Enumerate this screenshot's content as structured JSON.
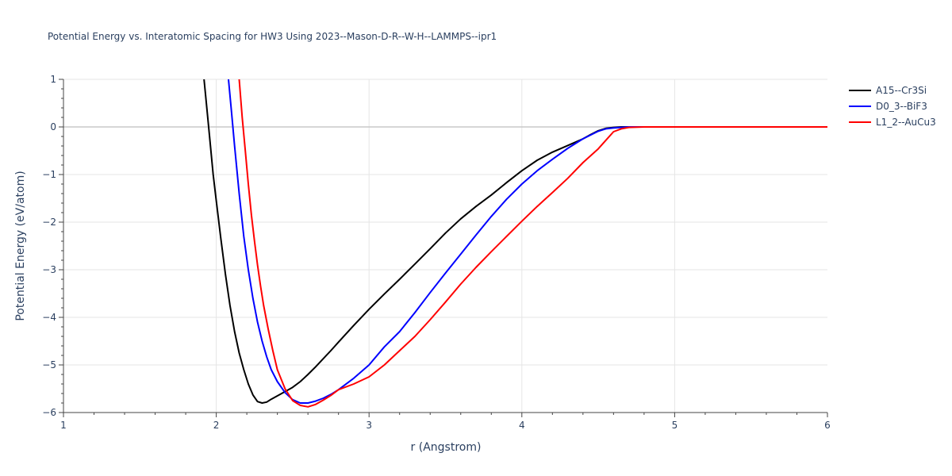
{
  "chart_data": {
    "type": "line",
    "title": "Potential Energy vs. Interatomic Spacing for HW3 Using 2023--Mason-D-R--W-H--LAMMPS--ipr1",
    "xlabel": "r (Angstrom)",
    "ylabel": "Potential Energy (eV/atom)",
    "xlim": [
      1,
      6
    ],
    "ylim": [
      -6,
      1
    ],
    "x_ticks": [
      1,
      2,
      3,
      4,
      5,
      6
    ],
    "x_tick_labels": [
      "1",
      "2",
      "3",
      "4",
      "5",
      "6"
    ],
    "y_ticks": [
      1,
      0,
      -1,
      -2,
      -3,
      -4,
      -5,
      -6
    ],
    "y_tick_labels": [
      "1",
      "0",
      "−1",
      "−2",
      "−3",
      "−4",
      "−5",
      "−6"
    ],
    "grid": true,
    "legend_position": "top-right",
    "series": [
      {
        "name": "A15--Cr3Si",
        "color": "#000000",
        "x": [
          1.92,
          1.95,
          1.98,
          2.0,
          2.03,
          2.06,
          2.09,
          2.12,
          2.15,
          2.18,
          2.21,
          2.24,
          2.27,
          2.3,
          2.33,
          2.36,
          2.4,
          2.45,
          2.5,
          2.55,
          2.6,
          2.65,
          2.7,
          2.75,
          2.8,
          2.9,
          3.0,
          3.1,
          3.2,
          3.3,
          3.4,
          3.5,
          3.6,
          3.7,
          3.8,
          3.9,
          4.0,
          4.1,
          4.2,
          4.3,
          4.4,
          4.45,
          4.5,
          4.55,
          4.6,
          4.65,
          4.7,
          4.8,
          5.0,
          5.5,
          6.0
        ],
        "y": [
          1.0,
          0.0,
          -1.0,
          -1.55,
          -2.35,
          -3.1,
          -3.75,
          -4.3,
          -4.75,
          -5.1,
          -5.4,
          -5.63,
          -5.77,
          -5.8,
          -5.78,
          -5.72,
          -5.65,
          -5.56,
          -5.47,
          -5.35,
          -5.2,
          -5.04,
          -4.87,
          -4.7,
          -4.52,
          -4.17,
          -3.83,
          -3.51,
          -3.2,
          -2.88,
          -2.56,
          -2.23,
          -1.93,
          -1.67,
          -1.43,
          -1.17,
          -0.92,
          -0.7,
          -0.53,
          -0.39,
          -0.25,
          -0.16,
          -0.08,
          -0.03,
          -0.01,
          0.0,
          0.0,
          0.0,
          0.0,
          0.0,
          0.0
        ]
      },
      {
        "name": "D0_3--BiF3",
        "color": "#0000ff",
        "x": [
          2.08,
          2.1,
          2.12,
          2.15,
          2.18,
          2.21,
          2.24,
          2.27,
          2.3,
          2.33,
          2.36,
          2.4,
          2.45,
          2.5,
          2.55,
          2.6,
          2.65,
          2.7,
          2.75,
          2.8,
          2.9,
          3.0,
          3.1,
          3.2,
          3.3,
          3.4,
          3.5,
          3.6,
          3.7,
          3.8,
          3.9,
          4.0,
          4.1,
          4.2,
          4.3,
          4.4,
          4.5,
          4.55,
          4.6,
          4.65,
          4.7,
          4.8,
          5.0,
          5.5,
          6.0
        ],
        "y": [
          1.0,
          0.3,
          -0.4,
          -1.4,
          -2.3,
          -3.0,
          -3.6,
          -4.1,
          -4.5,
          -4.83,
          -5.1,
          -5.35,
          -5.58,
          -5.73,
          -5.8,
          -5.8,
          -5.76,
          -5.7,
          -5.62,
          -5.52,
          -5.28,
          -5.0,
          -4.62,
          -4.3,
          -3.9,
          -3.48,
          -3.07,
          -2.67,
          -2.27,
          -1.88,
          -1.52,
          -1.2,
          -0.92,
          -0.68,
          -0.45,
          -0.25,
          -0.09,
          -0.04,
          -0.02,
          -0.01,
          0.0,
          0.0,
          0.0,
          0.0,
          0.0
        ]
      },
      {
        "name": "L1_2--AuCu3",
        "color": "#ff0000",
        "x": [
          2.15,
          2.17,
          2.19,
          2.21,
          2.23,
          2.25,
          2.27,
          2.29,
          2.31,
          2.34,
          2.37,
          2.4,
          2.45,
          2.5,
          2.55,
          2.6,
          2.65,
          2.7,
          2.75,
          2.8,
          2.9,
          3.0,
          3.1,
          3.2,
          3.3,
          3.4,
          3.5,
          3.6,
          3.7,
          3.8,
          3.9,
          4.0,
          4.1,
          4.2,
          4.3,
          4.4,
          4.5,
          4.55,
          4.6,
          4.65,
          4.7,
          4.8,
          5.0,
          5.5,
          6.0
        ],
        "y": [
          1.0,
          0.2,
          -0.5,
          -1.2,
          -1.85,
          -2.4,
          -2.9,
          -3.35,
          -3.75,
          -4.25,
          -4.7,
          -5.1,
          -5.5,
          -5.75,
          -5.85,
          -5.88,
          -5.83,
          -5.74,
          -5.64,
          -5.52,
          -5.4,
          -5.25,
          -5.0,
          -4.7,
          -4.4,
          -4.05,
          -3.68,
          -3.3,
          -2.95,
          -2.62,
          -2.3,
          -1.98,
          -1.67,
          -1.38,
          -1.08,
          -0.75,
          -0.46,
          -0.28,
          -0.1,
          -0.04,
          -0.01,
          0.0,
          0.0,
          0.0,
          0.0
        ]
      }
    ]
  }
}
